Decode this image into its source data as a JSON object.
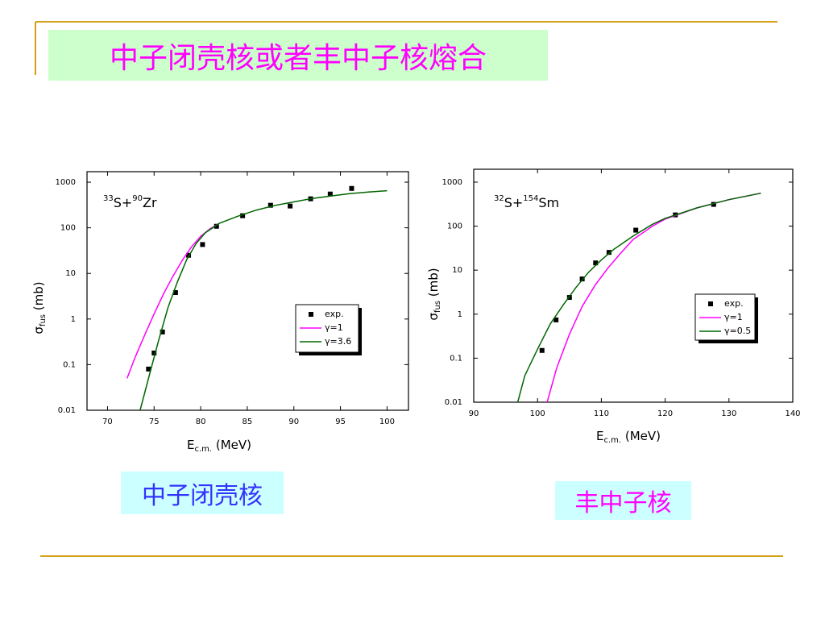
{
  "title": "中子闭壳核或者丰中子核熔合",
  "captions": [
    "中子闭壳核",
    "丰中子核"
  ],
  "chart_data": [
    {
      "type": "line",
      "log_y": true,
      "annotation_parts": [
        "33",
        "S+",
        "90",
        "Zr"
      ],
      "x_label_parts": [
        "E",
        "c.m.",
        " (MeV)"
      ],
      "y_label_parts": [
        "σ",
        "fus",
        " (mb)"
      ],
      "xlim": [
        67.8,
        102.3
      ],
      "xticks": [
        70,
        75,
        80,
        85,
        90,
        95,
        100
      ],
      "ylim": [
        0.01,
        1700
      ],
      "yticks": [
        0.01,
        0.1,
        1,
        10,
        100,
        1000
      ],
      "series": [
        {
          "name": "exp.",
          "color": "#000000",
          "style": "marker",
          "x": [
            74.4,
            75.0,
            75.9,
            77.3,
            78.7,
            80.2,
            81.7,
            84.5,
            87.5,
            89.6,
            91.8,
            93.9,
            96.2
          ],
          "values": [
            0.08,
            0.18,
            0.52,
            3.8,
            25,
            43,
            108,
            184,
            312,
            300,
            432,
            550,
            730
          ]
        },
        {
          "name": "γ=1",
          "color": "#ff00ff",
          "style": "line",
          "x": [
            72.1,
            73,
            74,
            75,
            76,
            77,
            78,
            79,
            80,
            81,
            82
          ],
          "values": [
            0.05,
            0.15,
            0.45,
            1.3,
            3.5,
            8.5,
            19,
            38,
            65,
            95,
            125
          ]
        },
        {
          "name": "γ=3.6",
          "color": "#006600",
          "style": "line",
          "x": [
            73.5,
            74.5,
            75.5,
            76.5,
            77.5,
            78.5,
            79.5,
            80.5,
            82,
            84,
            86,
            88,
            90,
            92,
            94,
            96,
            98,
            100
          ],
          "values": [
            0.01,
            0.06,
            0.35,
            1.8,
            6.5,
            20,
            45,
            78,
            125,
            180,
            245,
            310,
            370,
            440,
            500,
            560,
            610,
            650
          ]
        }
      ]
    },
    {
      "type": "line",
      "log_y": true,
      "annotation_parts": [
        "32",
        "S+",
        "154",
        "Sm"
      ],
      "x_label_parts": [
        "E",
        "c.m.",
        " (MeV)"
      ],
      "y_label_parts": [
        "σ",
        "fus",
        " (mb)"
      ],
      "xlim": [
        90,
        140
      ],
      "xticks": [
        90,
        100,
        110,
        120,
        130,
        140
      ],
      "ylim": [
        0.01,
        1960
      ],
      "yticks": [
        0.01,
        0.1,
        1,
        10,
        100,
        1000
      ],
      "series": [
        {
          "name": "exp.",
          "color": "#000000",
          "style": "marker",
          "x": [
            100.7,
            102.9,
            105.0,
            107.0,
            109.1,
            111.2,
            115.4,
            121.6,
            127.6
          ],
          "values": [
            0.15,
            0.74,
            2.4,
            6.3,
            14.6,
            25.3,
            81,
            180,
            312
          ]
        },
        {
          "name": "γ=1",
          "color": "#ff00ff",
          "style": "line",
          "x": [
            101.5,
            103,
            105,
            107,
            109,
            111,
            113,
            115,
            118,
            120,
            125,
            130,
            135
          ],
          "values": [
            0.01,
            0.06,
            0.35,
            1.5,
            4.5,
            11,
            24,
            50,
            100,
            145,
            260,
            400,
            560
          ]
        },
        {
          "name": "γ=0.5",
          "color": "#006600",
          "style": "line",
          "x": [
            96.9,
            98,
            100,
            102,
            104,
            106,
            108,
            110,
            112,
            115,
            118,
            120,
            125,
            130,
            135
          ],
          "values": [
            0.01,
            0.04,
            0.16,
            0.6,
            1.6,
            4,
            9,
            17,
            30,
            60,
            110,
            150,
            260,
            400,
            560
          ]
        }
      ]
    }
  ]
}
